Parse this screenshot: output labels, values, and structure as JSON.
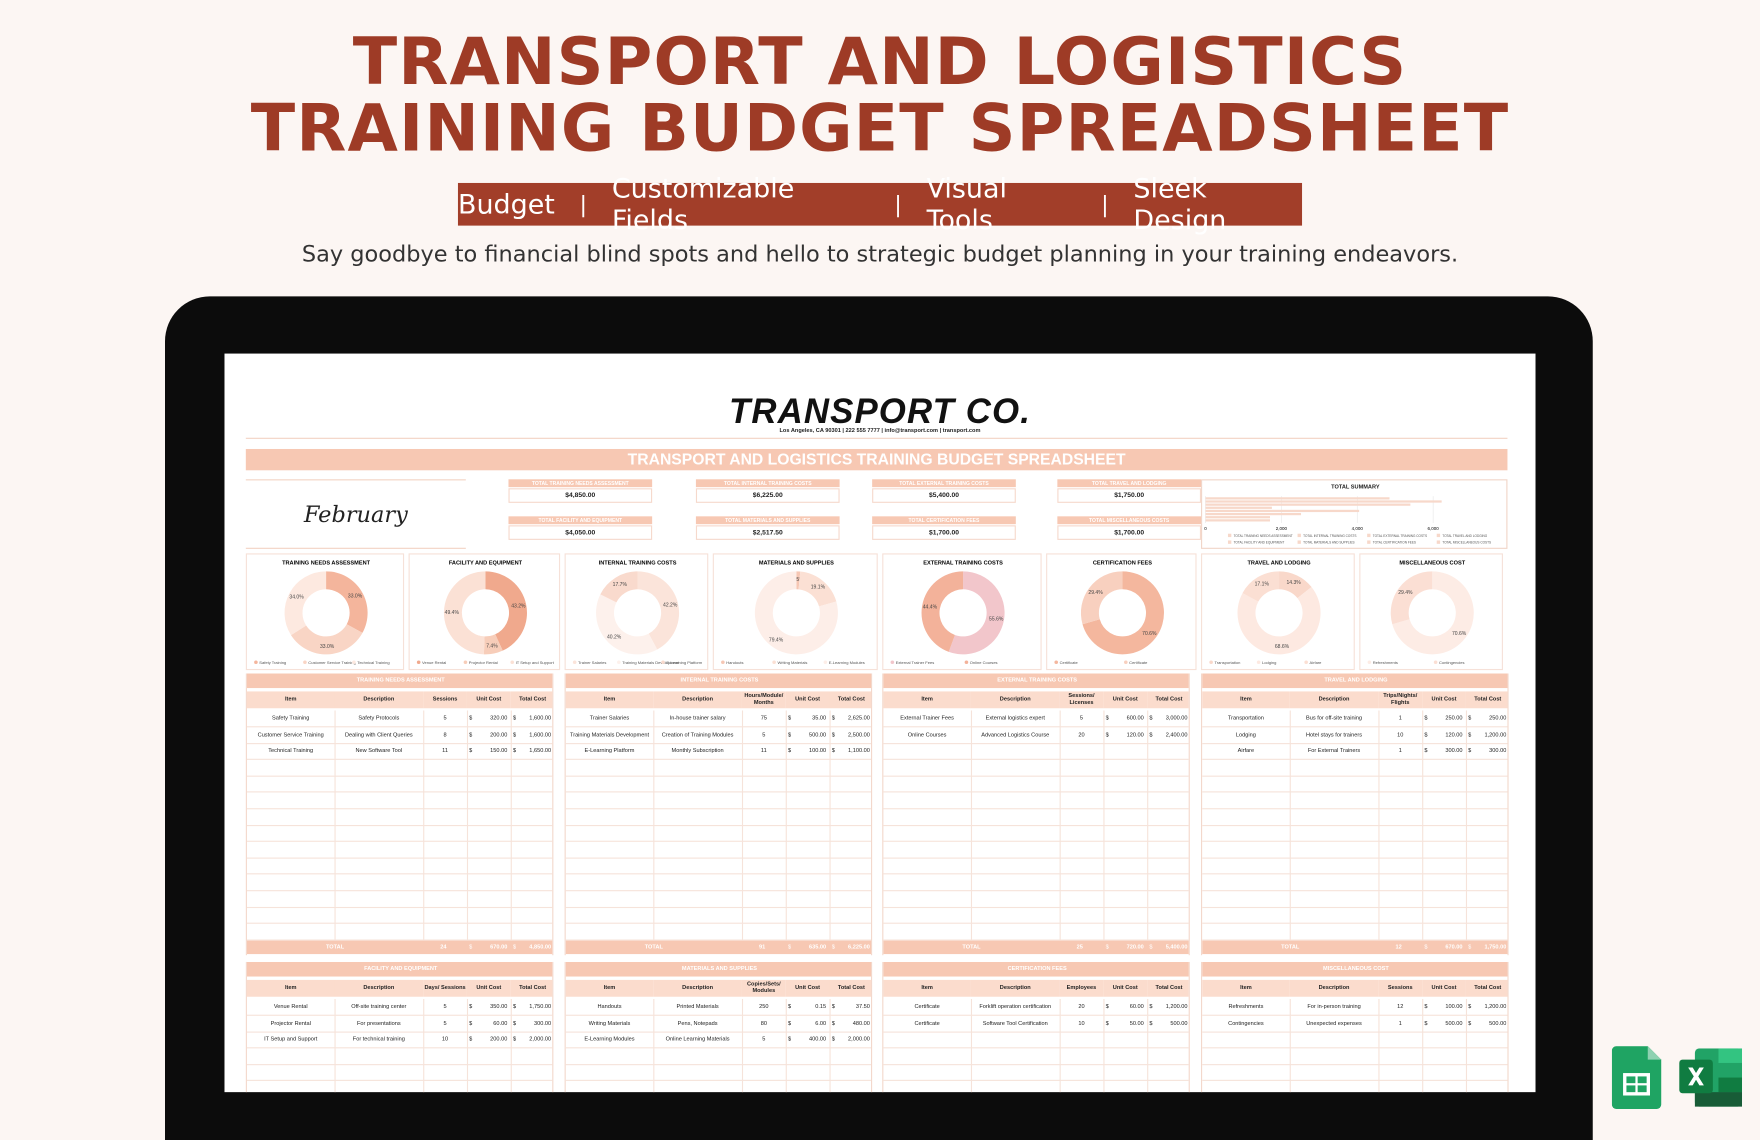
{
  "header": {
    "title_line1": "TRANSPORT AND LOGISTICS",
    "title_line2": "TRAINING BUDGET SPREADSHEET",
    "tags": [
      "Budget",
      "Customizable Fields",
      "Visual Tools",
      "Sleek Design"
    ],
    "separator": "|",
    "subtitle": "Say goodbye to financial blind spots and hello to strategic budget planning in your training endeavors."
  },
  "sheet": {
    "company": "TRANSPORT CO.",
    "address": "Los Angeles, CA 90301 | 222 555 7777 | info@transport.com | transport.com",
    "title": "TRANSPORT AND LOGISTICS TRAINING BUDGET SPREADSHEET",
    "month": "February",
    "totals": [
      {
        "label": "TOTAL TRAINING NEEDS ASSESSMENT",
        "amount": 4850,
        "amount_label": "$4,850.00"
      },
      {
        "label": "TOTAL INTERNAL TRAINING COSTS",
        "amount": 6225,
        "amount_label": "$6,225.00"
      },
      {
        "label": "TOTAL EXTERNAL TRAINING COSTS",
        "amount": 5400,
        "amount_label": "$5,400.00"
      },
      {
        "label": "TOTAL TRAVEL AND LODGING",
        "amount": 1750,
        "amount_label": "$1,750.00"
      },
      {
        "label": "TOTAL FACILITY AND EQUIPMENT",
        "amount": 4050,
        "amount_label": "$4,050.00"
      },
      {
        "label": "TOTAL MATERIALS AND SUPPLIES",
        "amount": 2517.5,
        "amount_label": "$2,517.50"
      },
      {
        "label": "TOTAL CERTIFICATION FEES",
        "amount": 1700,
        "amount_label": "$1,700.00"
      },
      {
        "label": "TOTAL MISCELLANEOUS COSTS",
        "amount": 1700,
        "amount_label": "$1,700.00"
      }
    ],
    "summary": {
      "title": "TOTAL SUMMARY",
      "xlim": [
        0,
        7900
      ],
      "xticks": [
        0,
        {
          "value": 2000,
          "label": "2,000"
        },
        {
          "value": 4000,
          "label": "4,000"
        },
        {
          "value": 6000,
          "label": "6,000"
        }
      ]
    },
    "charts": [
      {
        "title": "TRAINING NEEDS ASSESSMENT",
        "legend": [
          "Safety Training",
          "Customer Service Training",
          "Technical Training"
        ],
        "values": [
          33.0,
          33.0,
          34.0
        ],
        "value_labels": [
          "33.0%",
          "33.0%",
          "34.0%"
        ],
        "colors": [
          "#f4b59c",
          "#f9d5c5",
          "#fde9e0"
        ]
      },
      {
        "title": "FACILITY AND EQUIPMENT",
        "legend": [
          "Venue Rental",
          "Projector Rental",
          "IT Setup and Support"
        ],
        "values": [
          43.2,
          7.4,
          49.4
        ],
        "value_labels": [
          "43.2%",
          "7.4%",
          "49.4%"
        ],
        "colors": [
          "#f0a98d",
          "#f7cdb9",
          "#fbe1d5"
        ]
      },
      {
        "title": "INTERNAL TRAINING COSTS",
        "legend": [
          "Trainer Salaries",
          "Training Materials Development",
          "E-Learning Platform"
        ],
        "values": [
          42.2,
          40.2,
          17.7
        ],
        "value_labels": [
          "42.2%",
          "40.2%",
          "17.7%"
        ],
        "colors": [
          "#fbe4da",
          "#fdf1ec",
          "#f9dacd"
        ]
      },
      {
        "title": "MATERIALS AND SUPPLIES",
        "legend": [
          "Handouts",
          "Writing Materials",
          "E-Learning Modules"
        ],
        "values": [
          1.5,
          19.1,
          79.4
        ],
        "value_labels": [
          "1.5%",
          "19.1%",
          "79.4%"
        ],
        "colors": [
          "#f6c7b4",
          "#fbe0d4",
          "#fdeee8"
        ]
      },
      {
        "title": "EXTERNAL TRAINING COSTS",
        "legend": [
          "External Trainer Fees",
          "Online Courses"
        ],
        "values": [
          55.6,
          44.4
        ],
        "value_labels": [
          "55.6%",
          "44.4%"
        ],
        "colors": [
          "#f2c6cb",
          "#f3b29a"
        ]
      },
      {
        "title": "CERTIFICATION FEES",
        "legend": [
          "Certificate",
          "Certificate"
        ],
        "values": [
          70.6,
          29.4
        ],
        "value_labels": [
          "70.6%",
          "29.4%"
        ],
        "colors": [
          "#f4b79e",
          "#f8d0bf"
        ]
      },
      {
        "title": "TRAVEL AND LODGING",
        "legend": [
          "Transportation",
          "Lodging",
          "Airfare"
        ],
        "values": [
          14.3,
          68.6,
          17.1
        ],
        "value_labels": [
          "14.3%",
          "68.6%",
          "17.1%"
        ],
        "colors": [
          "#f9d8ca",
          "#fde9e1",
          "#fbdfd3"
        ]
      },
      {
        "title": "MISCELLANEOUS COST",
        "legend": [
          "Refreshments",
          "Contingencies"
        ],
        "values": [
          70.6,
          29.4
        ],
        "value_labels": [
          "70.6%",
          "29.4%"
        ],
        "colors": [
          "#fdece5",
          "#fbdfd4"
        ]
      }
    ],
    "tables": [
      {
        "title": "TRAINING NEEDS ASSESSMENT",
        "currency": "$",
        "headers": [
          "Item",
          "Description",
          "Sessions",
          "Unit Cost",
          "Total Cost"
        ],
        "rows": [
          [
            "Safety Training",
            "Safety Protocols",
            "5",
            "320.00",
            "1,600.00"
          ],
          [
            "Customer Service Training",
            "Dealing with Client Queries",
            "8",
            "200.00",
            "1,600.00"
          ],
          [
            "Technical Training",
            "New Software Tool",
            "11",
            "150.00",
            "1,650.00"
          ]
        ],
        "total": {
          "label": "TOTAL",
          "cells": [
            "24",
            "670.00",
            "4,850.00"
          ]
        }
      },
      {
        "title": "INTERNAL TRAINING COSTS",
        "currency": "$",
        "headers": [
          "Item",
          "Description",
          "Hours/Module/ Months",
          "Unit Cost",
          "Total Cost"
        ],
        "rows": [
          [
            "Trainer Salaries",
            "In-house trainer salary",
            "75",
            "35.00",
            "2,625.00"
          ],
          [
            "Training Materials Development",
            "Creation of Training Modules",
            "5",
            "500.00",
            "2,500.00"
          ],
          [
            "E-Learning Platform",
            "Monthly Subscription",
            "11",
            "100.00",
            "1,100.00"
          ]
        ],
        "total": {
          "label": "TOTAL",
          "cells": [
            "91",
            "635.00",
            "6,225.00"
          ]
        }
      },
      {
        "title": "EXTERNAL TRAINING COSTS",
        "currency": "$",
        "headers": [
          "Item",
          "Description",
          "Sessions/ Licenses",
          "Unit Cost",
          "Total Cost"
        ],
        "rows": [
          [
            "External Trainer Fees",
            "External logistics expert",
            "5",
            "600.00",
            "3,000.00"
          ],
          [
            "Online Courses",
            "Advanced Logistics Course",
            "20",
            "120.00",
            "2,400.00"
          ]
        ],
        "total": {
          "label": "TOTAL",
          "cells": [
            "25",
            "720.00",
            "5,400.00"
          ]
        }
      },
      {
        "title": "TRAVEL AND LODGING",
        "currency": "$",
        "headers": [
          "Item",
          "Description",
          "Trips/Nights/ Flights",
          "Unit Cost",
          "Total Cost"
        ],
        "rows": [
          [
            "Transportation",
            "Bus for off-site training",
            "1",
            "250.00",
            "250.00"
          ],
          [
            "Lodging",
            "Hotel stays for trainers",
            "10",
            "120.00",
            "1,200.00"
          ],
          [
            "Airfare",
            "For External Trainers",
            "1",
            "300.00",
            "300.00"
          ]
        ],
        "total": {
          "label": "TOTAL",
          "cells": [
            "12",
            "670.00",
            "1,750.00"
          ]
        }
      },
      {
        "title": "FACILITY AND EQUIPMENT",
        "currency": "$",
        "headers": [
          "Item",
          "Description",
          "Days/ Sessions",
          "Unit Cost",
          "Total Cost"
        ],
        "rows": [
          [
            "Venue Rental",
            "Off-site training center",
            "5",
            "350.00",
            "1,750.00"
          ],
          [
            "Projector Rental",
            "For presentations",
            "5",
            "60.00",
            "300.00"
          ],
          [
            "IT Setup and Support",
            "For technical training",
            "10",
            "200.00",
            "2,000.00"
          ]
        ]
      },
      {
        "title": "MATERIALS AND SUPPLIES",
        "currency": "$",
        "headers": [
          "Item",
          "Description",
          "Copies/Sets/ Modules",
          "Unit Cost",
          "Total Cost"
        ],
        "rows": [
          [
            "Handouts",
            "Printed Materials",
            "250",
            "0.15",
            "37.50"
          ],
          [
            "Writing Materials",
            "Pens, Notepads",
            "80",
            "6.00",
            "480.00"
          ],
          [
            "E-Learning Modules",
            "Online Learning Materials",
            "5",
            "400.00",
            "2,000.00"
          ]
        ]
      },
      {
        "title": "CERTIFICATION FEES",
        "currency": "$",
        "headers": [
          "Item",
          "Description",
          "Employees",
          "Unit Cost",
          "Total Cost"
        ],
        "rows": [
          [
            "Certificate",
            "Forklift operation certification",
            "20",
            "60.00",
            "1,200.00"
          ],
          [
            "Certificate",
            "Software Tool Certification",
            "10",
            "50.00",
            "500.00"
          ]
        ]
      },
      {
        "title": "MISCELLANEOUS COST",
        "currency": "$",
        "headers": [
          "Item",
          "Description",
          "Sessions",
          "Unit Cost",
          "Total Cost"
        ],
        "rows": [
          [
            "Refreshments",
            "For in-person training",
            "12",
            "100.00",
            "1,200.00"
          ],
          [
            "Contingencies",
            "Unexpected expenses",
            "1",
            "500.00",
            "500.00"
          ]
        ]
      }
    ]
  }
}
